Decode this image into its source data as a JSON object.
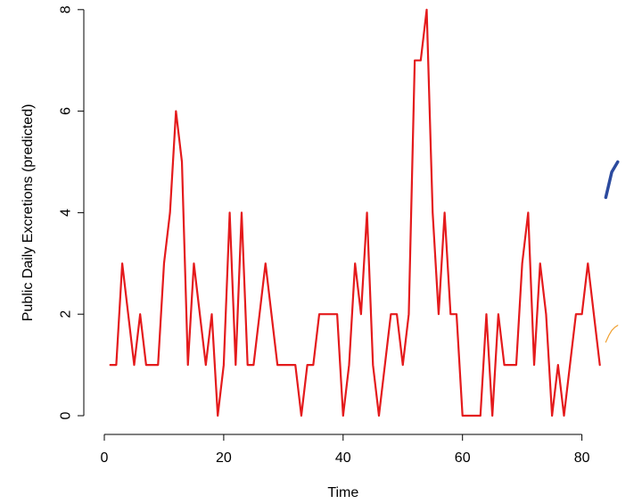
{
  "chart_data": {
    "type": "line",
    "title": "",
    "xlabel": "Time",
    "ylabel": "Public Daily Excretions (predicted)",
    "xlim": [
      0,
      86
    ],
    "ylim": [
      0,
      8
    ],
    "x_ticks": [
      0,
      20,
      40,
      60,
      80
    ],
    "y_ticks": [
      0,
      2,
      4,
      6,
      8
    ],
    "x_tick_labels": [
      "0",
      "20",
      "40",
      "60",
      "80"
    ],
    "y_tick_labels": [
      "0",
      "2",
      "4",
      "6",
      "8"
    ],
    "grid": false,
    "legend": "none",
    "series": [
      {
        "color": "#e41a1c",
        "line_width": 2.2,
        "x": [
          1,
          2,
          3,
          4,
          5,
          6,
          7,
          8,
          9,
          10,
          11,
          12,
          13,
          14,
          15,
          16,
          17,
          18,
          19,
          20,
          21,
          22,
          23,
          24,
          25,
          26,
          27,
          28,
          29,
          30,
          31,
          32,
          33,
          34,
          35,
          36,
          37,
          38,
          39,
          40,
          41,
          42,
          43,
          44,
          45,
          46,
          47,
          48,
          49,
          50,
          51,
          52,
          53,
          54,
          55,
          56,
          57,
          58,
          59,
          60,
          61,
          62,
          63,
          64,
          65,
          66,
          67,
          68,
          69,
          70,
          71,
          72,
          73,
          74,
          75,
          76,
          77,
          78,
          79,
          80,
          81,
          82,
          83
        ],
        "values": [
          1,
          1,
          3,
          2,
          1,
          2,
          1,
          1,
          1,
          3,
          4,
          6,
          5,
          1,
          3,
          2,
          1,
          2,
          0,
          1,
          4,
          1,
          4,
          1,
          1,
          2,
          3,
          2,
          1,
          1,
          1,
          1,
          0,
          1,
          1,
          2,
          2,
          2,
          2,
          0,
          1,
          3,
          2,
          4,
          1,
          0,
          1,
          2,
          2,
          1,
          2,
          7,
          7,
          8,
          4,
          2,
          4,
          2,
          2,
          0,
          0,
          0,
          0,
          2,
          0,
          2,
          1,
          1,
          1,
          3,
          4,
          1,
          3,
          2,
          0,
          1,
          0,
          1,
          2,
          2,
          3,
          2,
          1
        ]
      },
      {
        "color": "#2b4a9e",
        "line_width": 3.5,
        "x": [
          84,
          85,
          86
        ],
        "values": [
          4.3,
          4.8,
          5.0
        ]
      },
      {
        "color": "#f0a030",
        "line_width": 1.2,
        "x": [
          84,
          84.5,
          85,
          85.5,
          86
        ],
        "values": [
          1.45,
          1.58,
          1.68,
          1.74,
          1.78
        ]
      }
    ]
  }
}
